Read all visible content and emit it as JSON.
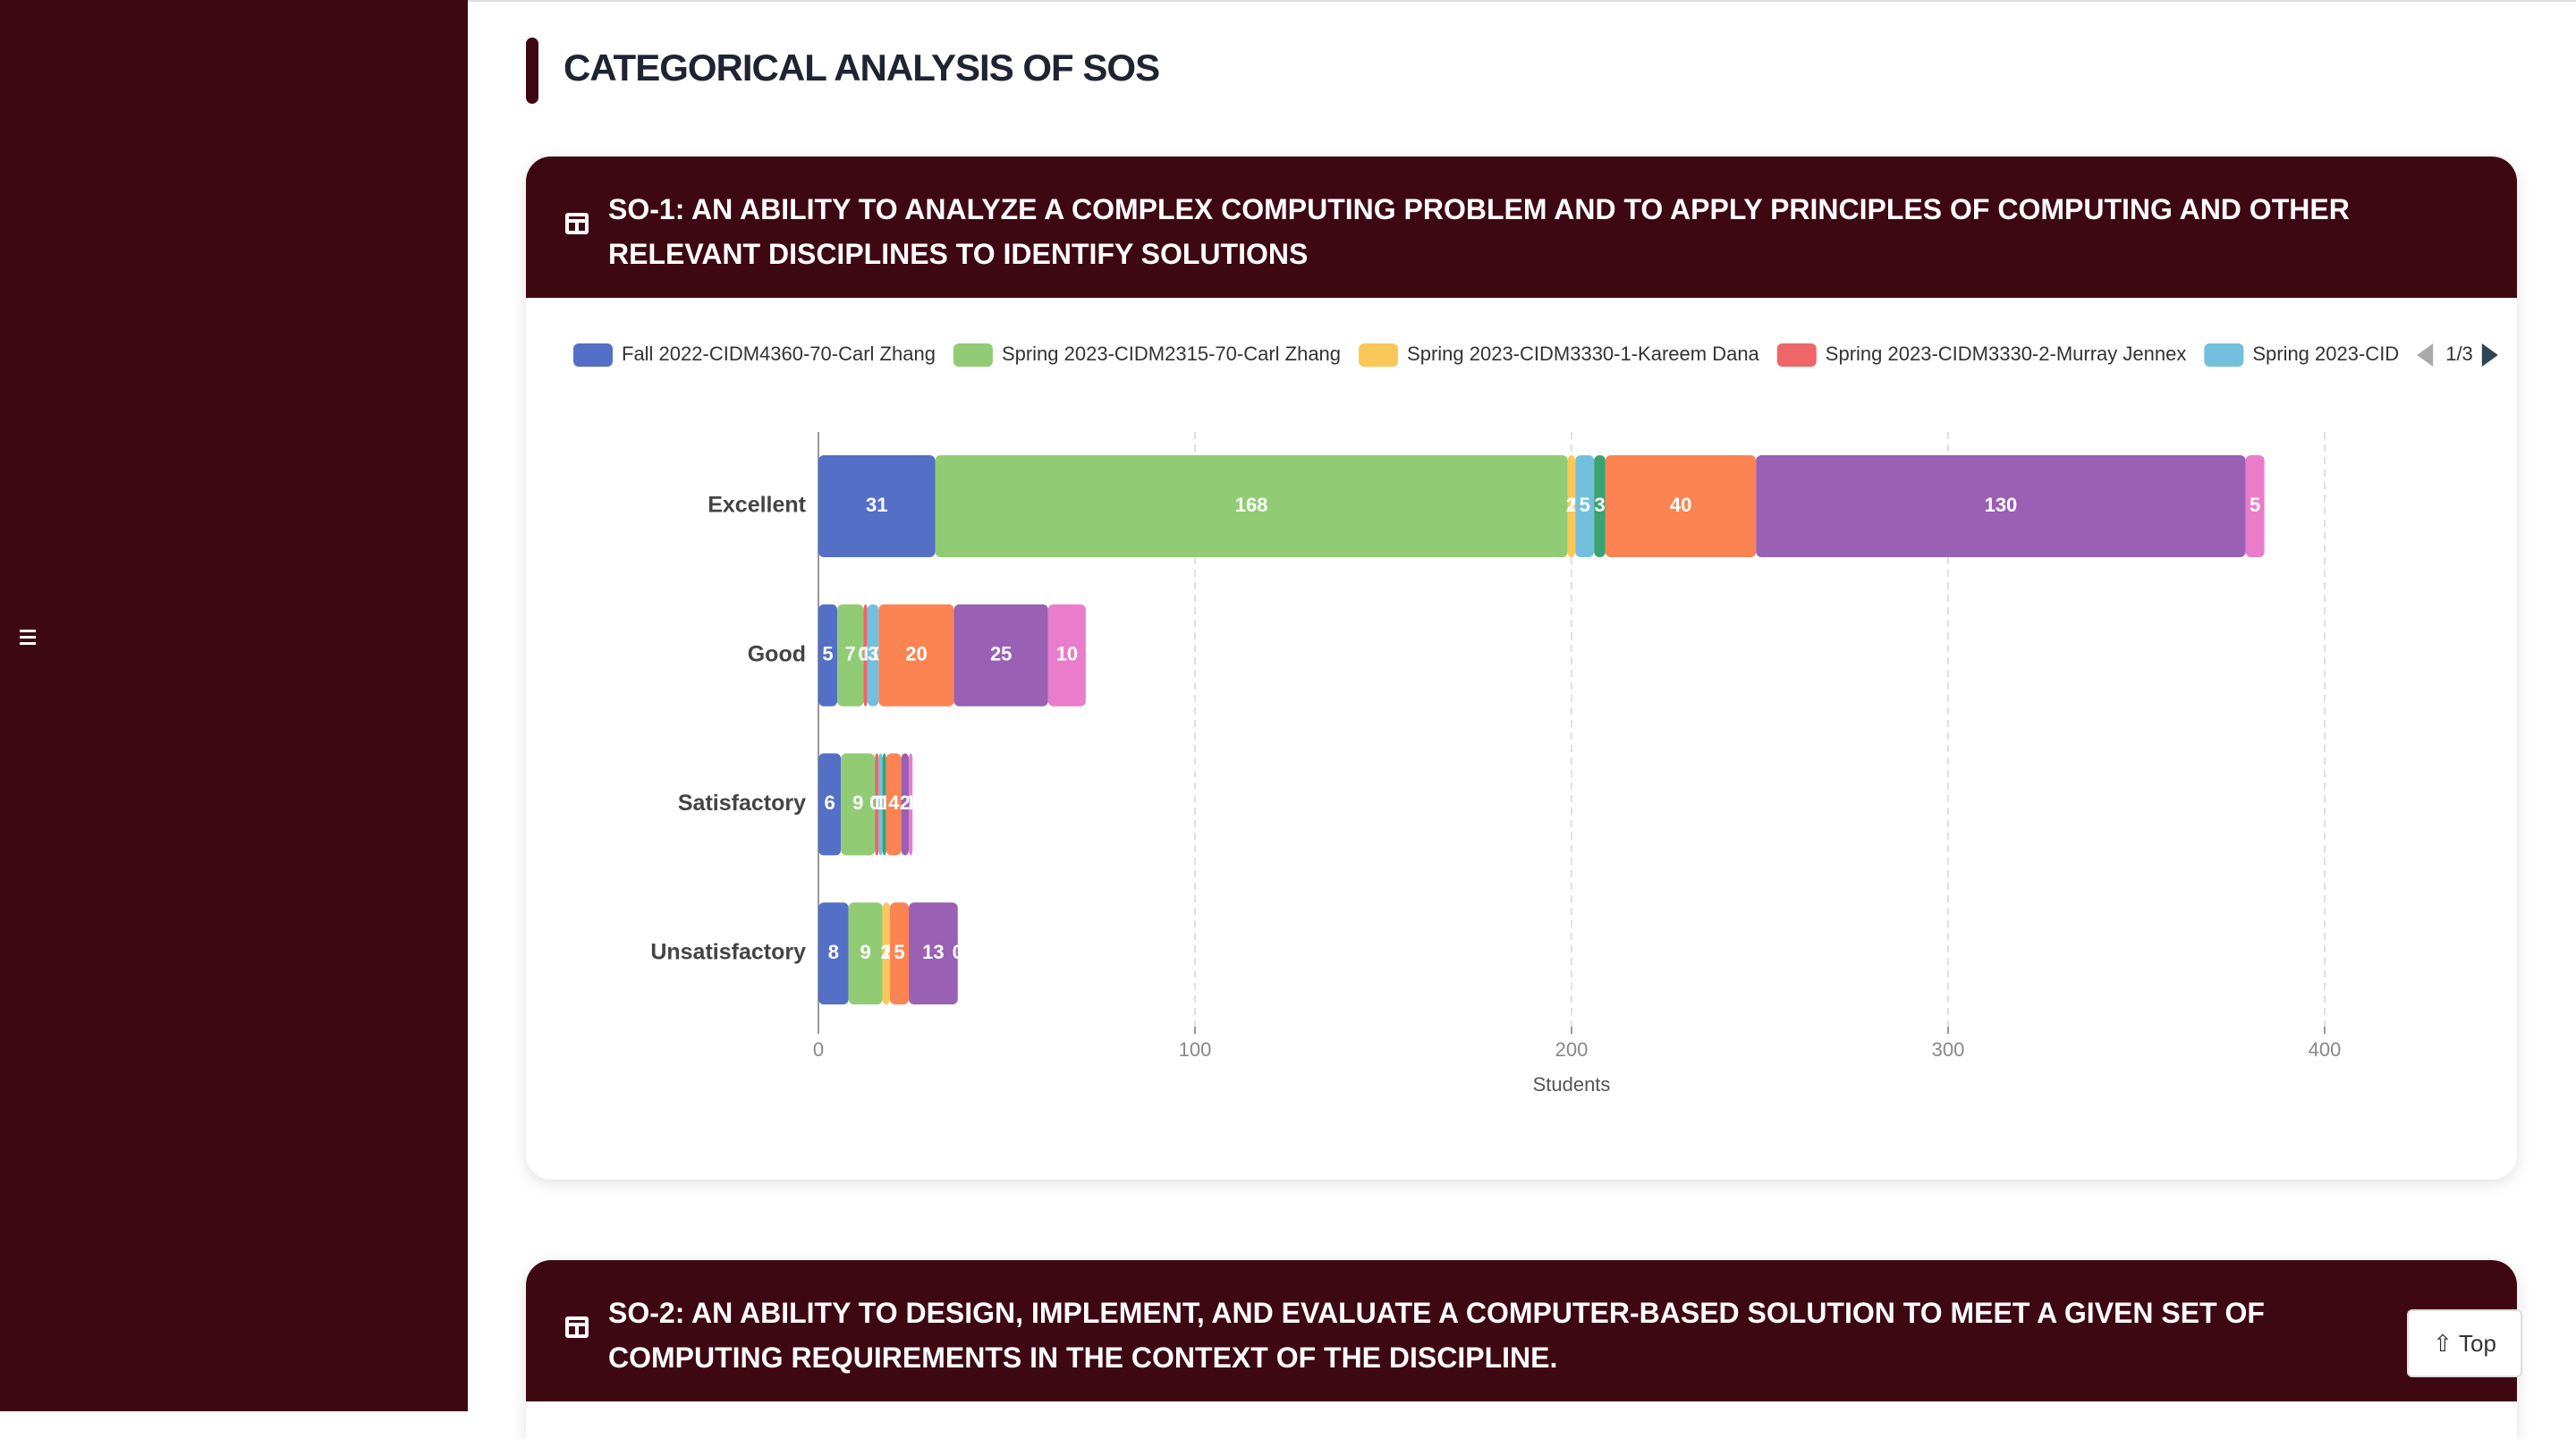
{
  "section_title": "CATEGORICAL ANALYSIS OF SOS",
  "cards": [
    "SO-1: AN ABILITY TO ANALYZE A COMPLEX COMPUTING PROBLEM AND TO APPLY PRINCIPLES OF COMPUTING AND OTHER RELEVANT DISCIPLINES TO IDENTIFY SOLUTIONS",
    "SO-2: AN ABILITY TO DESIGN, IMPLEMENT, AND EVALUATE A COMPUTER-BASED SOLUTION TO MEET A GIVEN SET OF COMPUTING REQUIREMENTS IN THE CONTEXT OF THE DISCIPLINE."
  ],
  "top_button": "Top",
  "chart_data": {
    "type": "stacked_bar_horizontal",
    "x_label": "Students",
    "categories": [
      "Excellent",
      "Good",
      "Satisfactory",
      "Unsatisfactory"
    ],
    "series": [
      {
        "name": "Fall 2022-CIDM4360-70-Carl Zhang",
        "color": "#5470c6",
        "values": [
          31,
          5,
          6,
          8
        ]
      },
      {
        "name": "Spring 2023-CIDM2315-70-Carl Zhang",
        "color": "#91cc75",
        "values": [
          168,
          7,
          9,
          9
        ]
      },
      {
        "name": "Spring 2023-CIDM3330-1-Kareem Dana",
        "color": "#fac858",
        "values": [
          2,
          0,
          0,
          2
        ]
      },
      {
        "name": "Spring 2023-CIDM3330-2-Murray Jennex",
        "color": "#ee6666",
        "values": [
          0,
          1,
          1,
          0
        ]
      },
      {
        "name": "Spring 2023-CID",
        "color": "#73c0de",
        "values": [
          5,
          3,
          1,
          0
        ]
      },
      {
        "color": "#3ba272",
        "values": [
          3,
          0,
          1,
          0
        ]
      },
      {
        "color": "#fc8452",
        "values": [
          40,
          20,
          4,
          5
        ]
      },
      {
        "color": "#9a60b4",
        "values": [
          130,
          25,
          2,
          13
        ]
      },
      {
        "color": "#ea7ccc",
        "values": [
          5,
          10,
          1,
          0
        ]
      }
    ],
    "legend_page": "1/3",
    "xlim": [
      0,
      400
    ],
    "xticks": [
      0,
      100,
      200,
      300,
      400
    ],
    "grid": true
  }
}
